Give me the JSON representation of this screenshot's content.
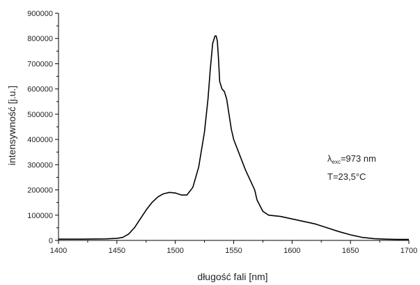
{
  "chart_data": {
    "type": "line",
    "xlabel": "długość fali [nm]",
    "ylabel": "intensywność [j.u.]",
    "xlim": [
      1400,
      1700
    ],
    "ylim": [
      0,
      900000
    ],
    "x_ticks": [
      "1400",
      "1450",
      "1500",
      "1550",
      "1600",
      "1650",
      "1700"
    ],
    "y_ticks": [
      "0",
      "100000",
      "200000",
      "300000",
      "400000",
      "500000",
      "600000",
      "700000",
      "800000",
      "900000"
    ],
    "grid": false,
    "line_color": "#000000",
    "annotations": {
      "lambda_symbol": "λ",
      "lambda_subscript": "exc",
      "lambda_value": "=973 nm",
      "temperature": "T=23,5°C"
    },
    "series": [
      {
        "x": [
          1400,
          1420,
          1440,
          1450,
          1455,
          1460,
          1465,
          1470,
          1475,
          1480,
          1485,
          1490,
          1495,
          1500,
          1505,
          1510,
          1515,
          1520,
          1525,
          1528,
          1530,
          1532,
          1534,
          1535,
          1536,
          1537,
          1538,
          1540,
          1542,
          1544,
          1546,
          1548,
          1550,
          1555,
          1560,
          1565,
          1568,
          1570,
          1575,
          1580,
          1590,
          1600,
          1610,
          1620,
          1630,
          1640,
          1650,
          1660,
          1670,
          1680,
          1690,
          1700
        ],
        "y": [
          5000,
          5000,
          6000,
          8000,
          12000,
          25000,
          50000,
          85000,
          120000,
          150000,
          172000,
          185000,
          190000,
          188000,
          180000,
          180000,
          210000,
          290000,
          430000,
          560000,
          680000,
          780000,
          810000,
          810000,
          790000,
          720000,
          630000,
          600000,
          590000,
          560000,
          500000,
          440000,
          400000,
          340000,
          280000,
          230000,
          200000,
          160000,
          115000,
          100000,
          95000,
          85000,
          75000,
          65000,
          50000,
          35000,
          22000,
          12000,
          7000,
          5000,
          4000,
          4000
        ]
      }
    ]
  }
}
